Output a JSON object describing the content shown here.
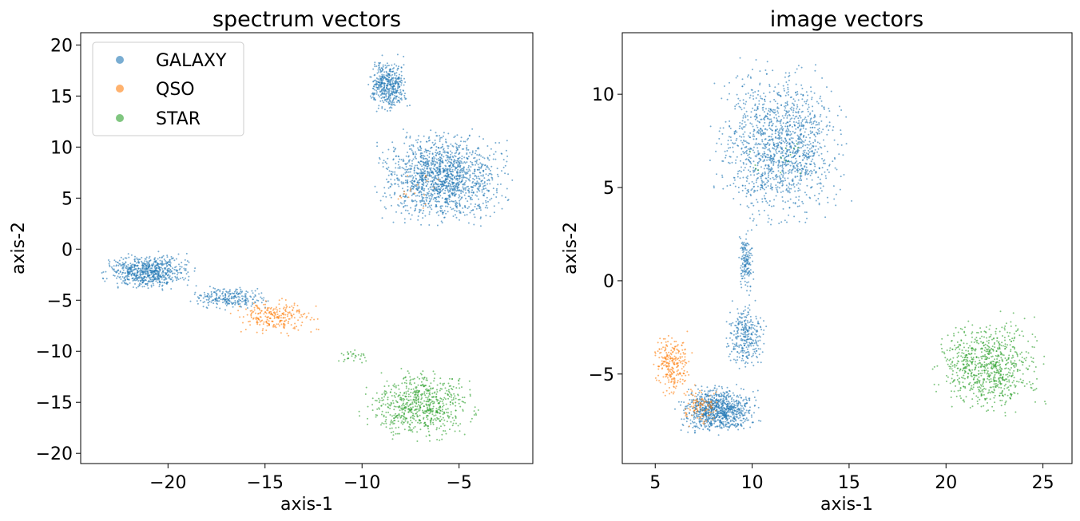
{
  "chart_data": [
    {
      "type": "scatter",
      "title": "spectrum vectors",
      "xlabel": "axis-1",
      "ylabel": "axis-2",
      "xlim": [
        -24.5,
        -1.2
      ],
      "ylim": [
        -21,
        21.2
      ],
      "xticks": [
        -20,
        -15,
        -10,
        -5
      ],
      "yticks": [
        -20,
        -15,
        -10,
        -5,
        0,
        5,
        10,
        15,
        20
      ],
      "legend": {
        "position": "top-left",
        "entries": [
          "GALAXY",
          "QSO",
          "STAR"
        ]
      },
      "series": [
        {
          "name": "GALAXY",
          "color": "#1f77b4",
          "clusters": [
            {
              "x": [
                -9.5,
                -2.2
              ],
              "y": [
                2,
                12
              ],
              "n": 1500
            },
            {
              "x": [
                -9.8,
                -7.5
              ],
              "y": [
                13,
                19.2
              ],
              "n": 450
            },
            {
              "x": [
                -23.5,
                -18.5
              ],
              "y": [
                -4.2,
                -0.2
              ],
              "n": 700
            },
            {
              "x": [
                -19,
                -14.5
              ],
              "y": [
                -6,
                -3.5
              ],
              "n": 250
            }
          ]
        },
        {
          "name": "QSO",
          "color": "#ff7f0e",
          "clusters": [
            {
              "x": [
                -17,
                -12
              ],
              "y": [
                -8.5,
                -4.8
              ],
              "n": 250
            },
            {
              "x": [
                -9,
                -5
              ],
              "y": [
                3,
                9
              ],
              "n": 20
            }
          ]
        },
        {
          "name": "STAR",
          "color": "#2ca02c",
          "clusters": [
            {
              "x": [
                -10.3,
                -3.7
              ],
              "y": [
                -19,
                -11.5
              ],
              "n": 700
            },
            {
              "x": [
                -11.5,
                -9.5
              ],
              "y": [
                -11.5,
                -9.5
              ],
              "n": 30
            }
          ]
        }
      ]
    },
    {
      "type": "scatter",
      "title": "image vectors",
      "xlabel": "axis-1",
      "ylabel": "axis-2",
      "xlim": [
        3.3,
        26.5
      ],
      "ylim": [
        -9.8,
        13.3
      ],
      "xticks": [
        5,
        10,
        15,
        20,
        25
      ],
      "yticks": [
        -5,
        0,
        5,
        10
      ],
      "series": [
        {
          "name": "GALAXY",
          "color": "#1f77b4",
          "clusters": [
            {
              "x": [
                7.8,
                15.2
              ],
              "y": [
                2.5,
                12
              ],
              "n": 1400
            },
            {
              "x": [
                9.2,
                10.2
              ],
              "y": [
                -1,
                3
              ],
              "n": 150
            },
            {
              "x": [
                8.5,
                10.8
              ],
              "y": [
                -5,
                -1
              ],
              "n": 300
            },
            {
              "x": [
                6,
                10.5
              ],
              "y": [
                -8.3,
                -5.5
              ],
              "n": 900
            }
          ]
        },
        {
          "name": "QSO",
          "color": "#ff7f0e",
          "clusters": [
            {
              "x": [
                4.8,
                7
              ],
              "y": [
                -6.5,
                -2.5
              ],
              "n": 250
            },
            {
              "x": [
                6.2,
                8.5
              ],
              "y": [
                -8,
                -5.5
              ],
              "n": 100
            }
          ]
        },
        {
          "name": "STAR",
          "color": "#2ca02c",
          "clusters": [
            {
              "x": [
                19.2,
                25.2
              ],
              "y": [
                -7.5,
                -1.6
              ],
              "n": 800
            },
            {
              "x": [
                8,
                14
              ],
              "y": [
                5,
                8
              ],
              "n": 15
            }
          ]
        }
      ]
    }
  ]
}
